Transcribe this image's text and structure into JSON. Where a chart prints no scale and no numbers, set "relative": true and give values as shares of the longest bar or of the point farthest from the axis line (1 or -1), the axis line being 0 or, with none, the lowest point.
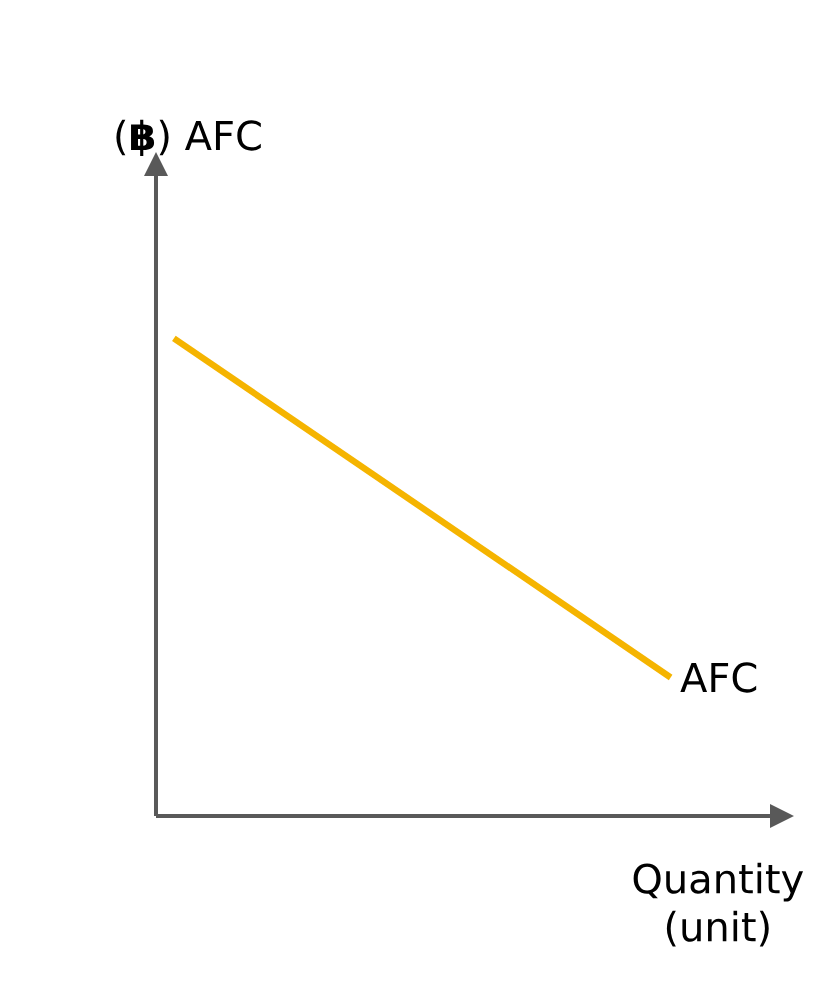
{
  "chart_data": {
    "type": "line",
    "relative": true,
    "ylabel": "(**฿**) AFC",
    "xlabel": "Quantity (unit)",
    "categories": [
      null,
      null
    ],
    "series": [
      {
        "name": "AFC",
        "color": "#f5b400",
        "values": [
          1,
          0.29
        ]
      }
    ]
  }
}
